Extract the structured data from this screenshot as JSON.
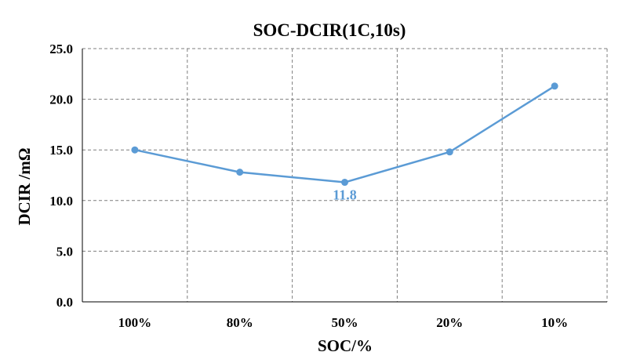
{
  "chart_data": {
    "type": "line",
    "title": "SOC-DCIR(1C,10s)",
    "xlabel": "SOC/%",
    "ylabel": "DCIR /mΩ",
    "categories": [
      "100%",
      "80%",
      "50%",
      "20%",
      "10%"
    ],
    "series": [
      {
        "values": [
          15.0,
          12.8,
          11.8,
          14.8,
          21.3
        ]
      }
    ],
    "ylim": [
      0,
      25
    ],
    "yticks": [
      "0.0",
      "5.0",
      "10.0",
      "15.0",
      "20.0",
      "25.0"
    ],
    "grid": true,
    "grid_style": "dashed",
    "legend": "none",
    "data_labels": [
      {
        "index": 2,
        "text": "11.8"
      }
    ],
    "colors": {
      "line": "#5B9BD5",
      "grid": "#7f7f7f",
      "axis": "#000000"
    }
  }
}
